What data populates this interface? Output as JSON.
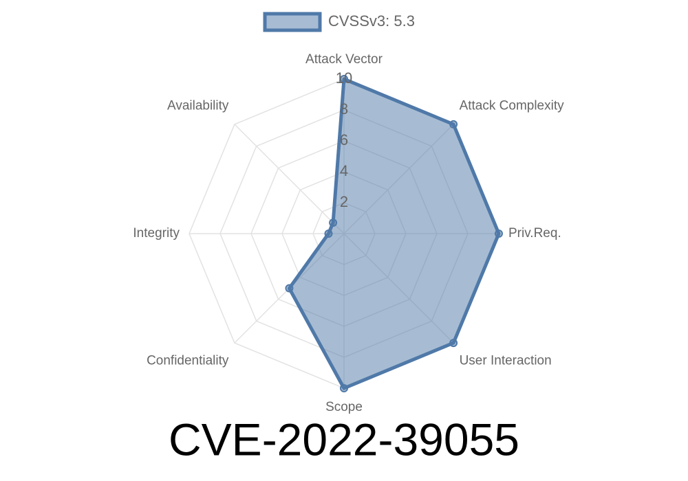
{
  "chart_data": {
    "type": "radar",
    "title": "CVE-2022-39055",
    "categories": [
      "Attack Vector",
      "Attack Complexity",
      "Priv.Req.",
      "User Interaction",
      "Scope",
      "Confidentiality",
      "Integrity",
      "Availability"
    ],
    "series": [
      {
        "name": "CVSSv3: 5.3",
        "color": "#4f79a8",
        "values": [
          10,
          10,
          10,
          10,
          10,
          5,
          1,
          1
        ]
      }
    ],
    "ylim": [
      0,
      10
    ],
    "yticks": [
      2,
      4,
      6,
      8,
      10
    ],
    "grid": true,
    "legend": "top"
  }
}
